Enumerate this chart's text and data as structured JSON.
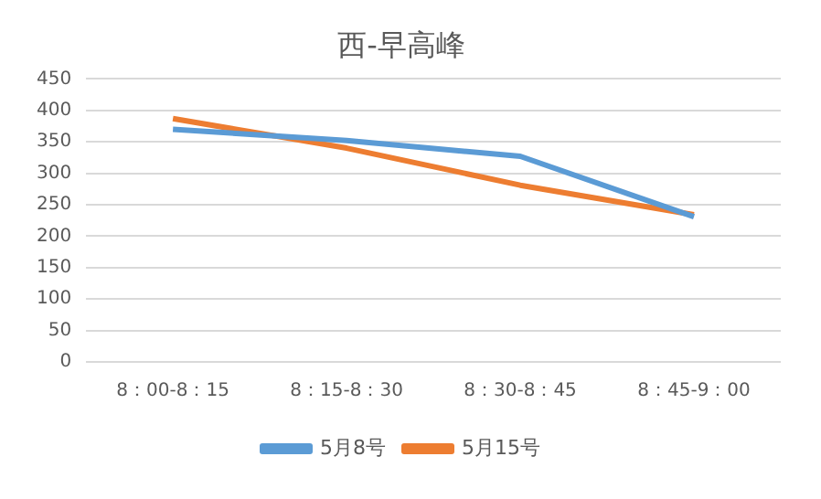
{
  "chart_data": {
    "type": "line",
    "title": "西-早高峰",
    "categories": [
      "8：00-8：15",
      "8：15-8：30",
      "8：30-8：45",
      "8：45-9：00"
    ],
    "series": [
      {
        "name": "5月8号",
        "color": "#5b9bd5",
        "values": [
          370,
          352,
          327,
          231
        ]
      },
      {
        "name": "5月15号",
        "color": "#ed7d31",
        "values": [
          387,
          340,
          281,
          234
        ]
      }
    ],
    "ylim": [
      0,
      450
    ],
    "yticks": [
      0,
      50,
      100,
      150,
      200,
      250,
      300,
      350,
      400,
      450
    ],
    "grid": "y",
    "legend": "bottom",
    "marker": "none",
    "line_style": "solid"
  }
}
